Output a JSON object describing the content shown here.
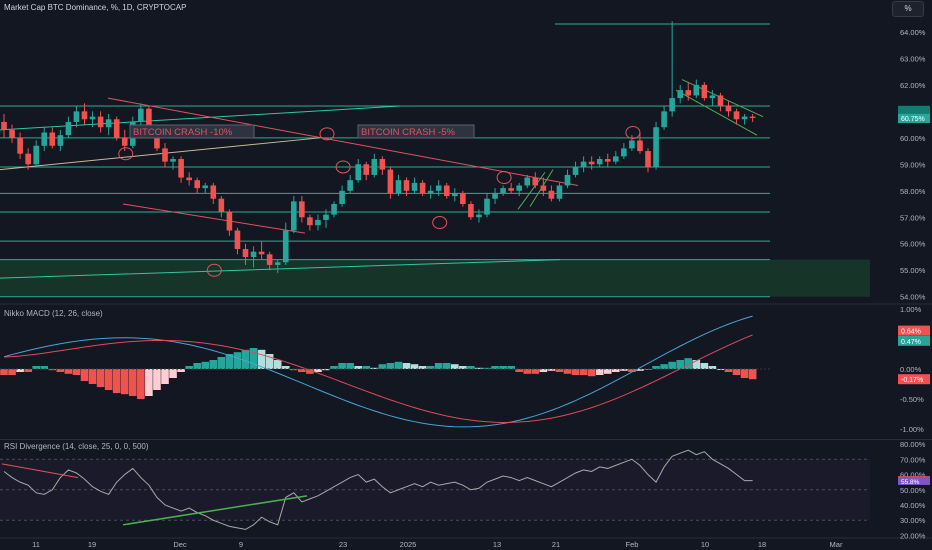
{
  "header": {
    "title": "Market Cap BTC Dominance, %, 1D, CRYPTOCAP",
    "scale_button": "%"
  },
  "colors": {
    "background": "#131722",
    "up": "#26a69a",
    "down": "#ef5350",
    "line_teal": "#2ec7a4",
    "line_red": "#e05360",
    "line_tan": "#c9b99a",
    "line_green": "#4caf50",
    "macd_blue": "#4aa3d8",
    "signal_red": "#e04a5a",
    "rsi_line": "#a8a8a8"
  },
  "annotations": [
    {
      "text": "BITCOIN CRASH -10%"
    },
    {
      "text": "BITCOIN CRASH -5%"
    }
  ],
  "price_axis": {
    "ticks": [
      "64.00%",
      "63.00%",
      "62.00%",
      "61.00%",
      "60.00%",
      "59.00%",
      "58.00%",
      "57.00%",
      "56.00%",
      "55.00%",
      "54.00%"
    ],
    "last_value": "60.75%"
  },
  "macd": {
    "label": "Nikko MACD (12, 26, close)",
    "ticks": [
      "1.00%",
      "0.50%",
      "0.00%",
      "-0.50%",
      "-1.00%"
    ],
    "badges": [
      "0.64%",
      "0.47%",
      "-0.17%"
    ]
  },
  "rsi": {
    "label": "RSI Divergence (14, close, 25, 0, 0, 500)",
    "ticks": [
      "80.00%",
      "70.00%",
      "60.00%",
      "50.00%",
      "40.00%",
      "30.00%",
      "20.00%"
    ],
    "badges": [
      "55.8%",
      "56.3%"
    ]
  },
  "time_axis": {
    "ticks": [
      "11",
      "19",
      "Dec",
      "9",
      "23",
      "2025",
      "13",
      "21",
      "Feb",
      "10",
      "18",
      "Mar"
    ]
  },
  "chart_data": {
    "type": "candlestick",
    "title": "Market Cap BTC Dominance, %, 1D, CRYPTOCAP",
    "xlabel": "",
    "ylabel": "",
    "ylim": [
      53.8,
      64.6
    ],
    "series": [
      {
        "name": "",
        "candles": [
          [
            60.6,
            60.9,
            60.0,
            60.3
          ],
          [
            60.3,
            60.5,
            59.8,
            60.0
          ],
          [
            60.0,
            60.2,
            59.2,
            59.4
          ],
          [
            59.4,
            59.6,
            58.8,
            59.0
          ],
          [
            59.0,
            59.9,
            58.9,
            59.7
          ],
          [
            59.7,
            60.4,
            59.5,
            60.2
          ],
          [
            60.2,
            60.4,
            59.6,
            59.7
          ],
          [
            59.7,
            60.3,
            59.5,
            60.1
          ],
          [
            60.1,
            60.8,
            60.0,
            60.6
          ],
          [
            60.6,
            61.2,
            60.4,
            61.0
          ],
          [
            61.0,
            61.3,
            60.5,
            60.7
          ],
          [
            60.7,
            61.0,
            60.4,
            60.8
          ],
          [
            60.8,
            61.0,
            60.2,
            60.4
          ],
          [
            60.4,
            60.9,
            60.1,
            60.7
          ],
          [
            60.7,
            60.8,
            59.9,
            60.0
          ],
          [
            60.0,
            60.3,
            59.5,
            59.7
          ],
          [
            59.7,
            60.8,
            59.6,
            60.6
          ],
          [
            60.6,
            61.3,
            60.4,
            61.1
          ],
          [
            61.1,
            61.2,
            60.1,
            60.3
          ],
          [
            60.3,
            60.4,
            59.5,
            59.6
          ],
          [
            59.6,
            59.8,
            58.9,
            59.1
          ],
          [
            59.1,
            59.3,
            58.8,
            59.2
          ],
          [
            59.2,
            59.3,
            58.3,
            58.5
          ],
          [
            58.5,
            58.7,
            58.2,
            58.4
          ],
          [
            58.4,
            58.5,
            57.9,
            58.1
          ],
          [
            58.1,
            58.3,
            57.9,
            58.2
          ],
          [
            58.2,
            58.3,
            57.5,
            57.7
          ],
          [
            57.7,
            57.8,
            57.0,
            57.2
          ],
          [
            57.2,
            57.3,
            56.3,
            56.5
          ],
          [
            56.5,
            56.6,
            55.6,
            55.8
          ],
          [
            55.8,
            56.0,
            55.2,
            55.5
          ],
          [
            55.5,
            55.9,
            55.1,
            55.7
          ],
          [
            55.7,
            56.1,
            55.4,
            55.6
          ],
          [
            55.6,
            55.7,
            55.0,
            55.2
          ],
          [
            55.2,
            55.4,
            54.9,
            55.3
          ],
          [
            55.3,
            56.8,
            55.2,
            56.5
          ],
          [
            56.5,
            57.8,
            56.4,
            57.6
          ],
          [
            57.6,
            57.8,
            56.8,
            57.0
          ],
          [
            57.0,
            57.1,
            56.5,
            56.7
          ],
          [
            56.7,
            57.1,
            56.5,
            56.9
          ],
          [
            56.9,
            57.3,
            56.6,
            57.1
          ],
          [
            57.1,
            57.6,
            57.0,
            57.5
          ],
          [
            57.5,
            58.2,
            57.4,
            58.0
          ],
          [
            58.0,
            58.6,
            57.9,
            58.4
          ],
          [
            58.4,
            59.2,
            58.3,
            59.0
          ],
          [
            59.0,
            59.1,
            58.4,
            58.6
          ],
          [
            58.6,
            59.4,
            58.5,
            59.2
          ],
          [
            59.2,
            59.3,
            58.6,
            58.8
          ],
          [
            58.8,
            58.9,
            57.7,
            57.9
          ],
          [
            57.9,
            58.6,
            57.8,
            58.4
          ],
          [
            58.4,
            58.5,
            57.8,
            58.0
          ],
          [
            58.0,
            58.5,
            57.9,
            58.3
          ],
          [
            58.3,
            58.4,
            57.8,
            57.9
          ],
          [
            57.9,
            58.2,
            57.7,
            58.0
          ],
          [
            58.0,
            58.4,
            57.8,
            58.2
          ],
          [
            58.2,
            58.3,
            57.7,
            57.8
          ],
          [
            57.8,
            58.1,
            57.6,
            57.9
          ],
          [
            57.9,
            58.0,
            57.4,
            57.5
          ],
          [
            57.5,
            57.6,
            56.9,
            57.0
          ],
          [
            57.0,
            57.3,
            56.8,
            57.1
          ],
          [
            57.1,
            57.9,
            57.0,
            57.7
          ],
          [
            57.7,
            58.1,
            57.5,
            57.9
          ],
          [
            57.9,
            58.2,
            57.8,
            58.1
          ],
          [
            58.1,
            58.3,
            57.9,
            58.0
          ],
          [
            58.0,
            58.3,
            57.8,
            58.2
          ],
          [
            58.2,
            58.6,
            58.1,
            58.5
          ],
          [
            58.5,
            58.7,
            58.1,
            58.2
          ],
          [
            58.2,
            58.5,
            57.8,
            58.0
          ],
          [
            58.0,
            58.2,
            57.6,
            57.7
          ],
          [
            57.7,
            58.3,
            57.6,
            58.2
          ],
          [
            58.2,
            58.8,
            58.1,
            58.6
          ],
          [
            58.6,
            59.1,
            58.5,
            58.9
          ],
          [
            58.9,
            59.3,
            58.7,
            59.1
          ],
          [
            59.1,
            59.3,
            58.8,
            59.0
          ],
          [
            59.0,
            59.3,
            58.9,
            59.2
          ],
          [
            59.2,
            59.4,
            58.9,
            59.1
          ],
          [
            59.1,
            59.5,
            59.0,
            59.3
          ],
          [
            59.3,
            59.8,
            59.2,
            59.6
          ],
          [
            59.6,
            60.1,
            59.5,
            59.9
          ],
          [
            59.9,
            60.2,
            59.4,
            59.5
          ],
          [
            59.5,
            59.6,
            58.7,
            58.9
          ],
          [
            58.9,
            60.6,
            58.8,
            60.4
          ],
          [
            60.4,
            61.2,
            60.3,
            61.0
          ],
          [
            61.0,
            64.4,
            60.8,
            61.5
          ],
          [
            61.5,
            62.0,
            61.3,
            61.8
          ],
          [
            61.8,
            62.1,
            61.4,
            61.6
          ],
          [
            61.6,
            62.2,
            61.5,
            62.0
          ],
          [
            62.0,
            62.1,
            61.4,
            61.5
          ],
          [
            61.5,
            61.8,
            61.2,
            61.6
          ],
          [
            61.6,
            61.7,
            61.0,
            61.2
          ],
          [
            61.2,
            61.4,
            60.8,
            61.0
          ],
          [
            61.0,
            61.1,
            60.5,
            60.7
          ],
          [
            60.7,
            60.9,
            60.5,
            60.8
          ],
          [
            60.8,
            60.9,
            60.6,
            60.75
          ]
        ]
      }
    ],
    "horizontal_levels": [
      64.3,
      61.2,
      60.0,
      58.9,
      57.9,
      57.2,
      56.1,
      55.4,
      54.0
    ],
    "macd_histogram": [
      -0.1,
      -0.1,
      -0.05,
      -0.05,
      0.05,
      0.05,
      -0.02,
      -0.05,
      -0.08,
      -0.1,
      -0.2,
      -0.25,
      -0.3,
      -0.35,
      -0.4,
      -0.42,
      -0.45,
      -0.5,
      -0.45,
      -0.35,
      -0.25,
      -0.15,
      -0.05,
      0.05,
      0.1,
      0.12,
      0.15,
      0.2,
      0.25,
      0.28,
      0.32,
      0.35,
      0.32,
      0.25,
      0.15,
      0.05,
      -0.02,
      -0.05,
      -0.08,
      -0.05,
      -0.02,
      0.05,
      0.1,
      0.1,
      0.05,
      0.05,
      0.02,
      0.08,
      0.1,
      0.12,
      0.1,
      0.08,
      0.05,
      0.05,
      0.1,
      0.1,
      0.08,
      0.05,
      0.05,
      0.02,
      0.02,
      0.05,
      0.05,
      0.05,
      -0.05,
      -0.08,
      -0.08,
      -0.05,
      -0.03,
      -0.05,
      -0.08,
      -0.1,
      -0.1,
      -0.12,
      -0.1,
      -0.08,
      -0.05,
      -0.03,
      -0.05,
      -0.03,
      0.0,
      0.05,
      0.08,
      0.12,
      0.15,
      0.18,
      0.15,
      0.1,
      0.05,
      0.0,
      -0.05,
      -0.1,
      -0.15,
      -0.17
    ],
    "rsi_values": [
      62,
      58,
      55,
      53,
      48,
      47,
      50,
      58,
      63,
      61,
      57,
      52,
      49,
      47,
      55,
      60,
      64,
      58,
      53,
      45,
      40,
      38,
      36,
      38,
      35,
      33,
      30,
      28,
      26,
      25,
      24,
      27,
      32,
      29,
      27,
      45,
      48,
      42,
      44,
      46,
      49,
      52,
      55,
      58,
      60,
      55,
      57,
      52,
      48,
      50,
      52,
      54,
      52,
      55,
      53,
      54,
      55,
      53,
      50,
      51,
      55,
      57,
      59,
      58,
      56,
      58,
      56,
      54,
      52,
      55,
      58,
      61,
      63,
      62,
      65,
      64,
      66,
      68,
      70,
      66,
      60,
      55,
      65,
      72,
      74,
      76,
      73,
      75,
      70,
      67,
      64,
      60,
      56,
      56
    ]
  }
}
